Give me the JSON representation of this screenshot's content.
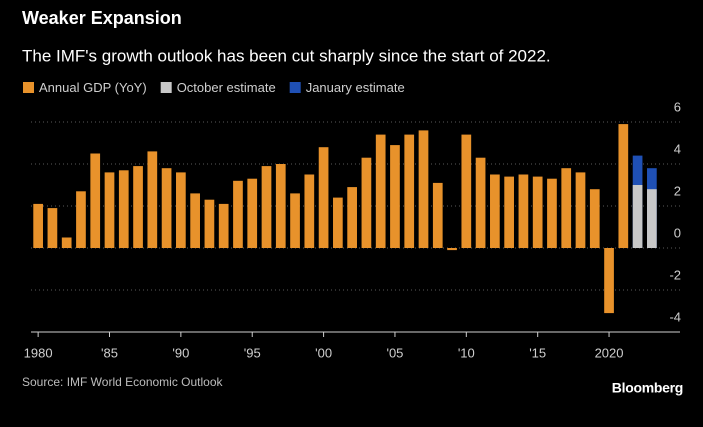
{
  "chart_data": {
    "type": "bar",
    "title": "Weaker Expansion",
    "subtitle": "The IMF's growth outlook has been cut sharply since the start of 2022.",
    "source": "Source: IMF World Economic Outlook",
    "brand": "Bloomberg",
    "x": [
      1980,
      1981,
      1982,
      1983,
      1984,
      1985,
      1986,
      1987,
      1988,
      1989,
      1990,
      1991,
      1992,
      1993,
      1994,
      1995,
      1996,
      1997,
      1998,
      1999,
      2000,
      2001,
      2002,
      2003,
      2004,
      2005,
      2006,
      2007,
      2008,
      2009,
      2010,
      2011,
      2012,
      2013,
      2014,
      2015,
      2016,
      2017,
      2018,
      2019,
      2020,
      2021,
      2022,
      2023
    ],
    "series": [
      {
        "name": "Annual GDP (YoY)",
        "color": "#e8922b",
        "values": [
          2.1,
          1.9,
          0.5,
          2.7,
          4.5,
          3.6,
          3.7,
          3.9,
          4.6,
          3.8,
          3.6,
          2.6,
          2.3,
          2.1,
          3.2,
          3.3,
          3.9,
          4.0,
          2.6,
          3.5,
          4.8,
          2.4,
          2.9,
          4.3,
          5.4,
          4.9,
          5.4,
          5.6,
          3.1,
          -0.1,
          5.4,
          4.3,
          3.5,
          3.4,
          3.5,
          3.4,
          3.3,
          3.8,
          3.6,
          2.8,
          -3.1,
          5.9,
          null,
          null
        ]
      },
      {
        "name": "October estimate",
        "color": "#c8c8c8",
        "values": [
          null,
          null,
          null,
          null,
          null,
          null,
          null,
          null,
          null,
          null,
          null,
          null,
          null,
          null,
          null,
          null,
          null,
          null,
          null,
          null,
          null,
          null,
          null,
          null,
          null,
          null,
          null,
          null,
          null,
          null,
          null,
          null,
          null,
          null,
          null,
          null,
          null,
          null,
          null,
          null,
          null,
          null,
          3.0,
          2.8
        ]
      },
      {
        "name": "January estimate",
        "color": "#1f50b5",
        "values": [
          null,
          null,
          null,
          null,
          null,
          null,
          null,
          null,
          null,
          null,
          null,
          null,
          null,
          null,
          null,
          null,
          null,
          null,
          null,
          null,
          null,
          null,
          null,
          null,
          null,
          null,
          null,
          null,
          null,
          null,
          null,
          null,
          null,
          null,
          null,
          null,
          null,
          null,
          null,
          null,
          null,
          null,
          4.4,
          3.8
        ]
      }
    ],
    "xlim": [
      1979.5,
      2023.5
    ],
    "xticks": [
      1980,
      {
        "value": 1985,
        "label": "'85"
      },
      {
        "value": 1990,
        "label": "'90"
      },
      {
        "value": 1995,
        "label": "'95"
      },
      {
        "value": 2000,
        "label": "'00"
      },
      {
        "value": 2005,
        "label": "'05"
      },
      {
        "value": 2010,
        "label": "'10"
      },
      {
        "value": 2015,
        "label": "'15"
      },
      2020
    ],
    "ylim": [
      -4,
      6
    ],
    "yticks": [
      -4,
      -2,
      0,
      2,
      4,
      6
    ],
    "grid": true
  }
}
